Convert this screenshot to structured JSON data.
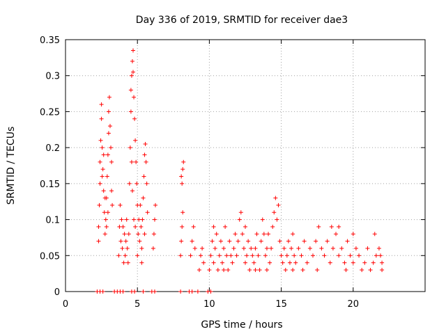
{
  "chart_data": {
    "type": "scatter",
    "title": "Day 336 of 2019, SRMTID for receiver dae3",
    "xlabel": "GPS time / hours",
    "ylabel": "SRMTID / TECUs",
    "xlim": [
      0,
      25
    ],
    "ylim": [
      0,
      0.35
    ],
    "xticks": [
      0,
      5,
      10,
      15,
      20
    ],
    "xtick_labels": [
      "0",
      "5",
      "10",
      "15",
      "20"
    ],
    "yticks": [
      0,
      0.05,
      0.1,
      0.15,
      0.2,
      0.25,
      0.3,
      0.35
    ],
    "ytick_labels": [
      "0",
      "0.05",
      "0.1",
      "0.15",
      "0.2",
      "0.25",
      "0.3",
      "0.35"
    ],
    "grid": true,
    "marker": "+",
    "series": [
      {
        "name": "SRMTID",
        "color": "#ff0000",
        "points": [
          [
            2.2,
            0
          ],
          [
            2.4,
            0
          ],
          [
            2.6,
            0
          ],
          [
            3.4,
            0
          ],
          [
            3.6,
            0
          ],
          [
            3.8,
            0
          ],
          [
            4.0,
            0
          ],
          [
            4.6,
            0
          ],
          [
            4.8,
            0
          ],
          [
            5.4,
            0
          ],
          [
            6.0,
            0
          ],
          [
            6.2,
            0
          ],
          [
            8.0,
            0
          ],
          [
            8.6,
            0
          ],
          [
            8.8,
            0
          ],
          [
            9.2,
            0
          ],
          [
            9.9,
            0
          ],
          [
            10.1,
            0
          ],
          [
            2.3,
            0.07
          ],
          [
            2.3,
            0.09
          ],
          [
            2.35,
            0.12
          ],
          [
            2.4,
            0.15
          ],
          [
            2.4,
            0.18
          ],
          [
            2.45,
            0.21
          ],
          [
            2.5,
            0.24
          ],
          [
            2.5,
            0.26
          ],
          [
            2.55,
            0.2
          ],
          [
            2.6,
            0.17
          ],
          [
            2.65,
            0.14
          ],
          [
            2.7,
            0.11
          ],
          [
            2.75,
            0.08
          ],
          [
            2.8,
            0.1
          ],
          [
            2.85,
            0.13
          ],
          [
            2.9,
            0.16
          ],
          [
            2.95,
            0.19
          ],
          [
            3.0,
            0.22
          ],
          [
            3.0,
            0.25
          ],
          [
            3.05,
            0.27
          ],
          [
            3.1,
            0.23
          ],
          [
            3.15,
            0.2
          ],
          [
            3.2,
            0.18
          ],
          [
            3.2,
            0.14
          ],
          [
            3.25,
            0.12
          ],
          [
            2.55,
            0.16
          ],
          [
            2.65,
            0.19
          ],
          [
            2.75,
            0.13
          ],
          [
            2.85,
            0.09
          ],
          [
            2.95,
            0.11
          ],
          [
            3.7,
            0.05
          ],
          [
            3.75,
            0.09
          ],
          [
            3.8,
            0.12
          ],
          [
            3.85,
            0.07
          ],
          [
            3.9,
            0.1
          ],
          [
            3.95,
            0.06
          ],
          [
            4.0,
            0.09
          ],
          [
            4.05,
            0.04
          ],
          [
            4.1,
            0.08
          ],
          [
            4.15,
            0.05
          ],
          [
            4.2,
            0.07
          ],
          [
            4.25,
            0.1
          ],
          [
            4.3,
            0.06
          ],
          [
            4.35,
            0.04
          ],
          [
            4.4,
            0.08
          ],
          [
            4.45,
            0.15
          ],
          [
            4.5,
            0.2
          ],
          [
            4.55,
            0.25
          ],
          [
            4.55,
            0.28
          ],
          [
            4.6,
            0.3
          ],
          [
            4.65,
            0.32
          ],
          [
            4.7,
            0.335
          ],
          [
            4.7,
            0.305
          ],
          [
            4.75,
            0.27
          ],
          [
            4.8,
            0.24
          ],
          [
            4.85,
            0.21
          ],
          [
            4.9,
            0.18
          ],
          [
            4.95,
            0.15
          ],
          [
            5.0,
            0.12
          ],
          [
            4.6,
            0.18
          ],
          [
            4.65,
            0.14
          ],
          [
            4.75,
            0.1
          ],
          [
            4.85,
            0.09
          ],
          [
            5.0,
            0.05
          ],
          [
            5.05,
            0.08
          ],
          [
            5.1,
            0.1
          ],
          [
            5.15,
            0.07
          ],
          [
            5.2,
            0.12
          ],
          [
            5.25,
            0.09
          ],
          [
            5.3,
            0.06
          ],
          [
            5.35,
            0.1
          ],
          [
            5.4,
            0.13
          ],
          [
            5.45,
            0.16
          ],
          [
            5.5,
            0.19
          ],
          [
            5.55,
            0.205
          ],
          [
            5.6,
            0.18
          ],
          [
            5.65,
            0.15
          ],
          [
            5.7,
            0.11
          ],
          [
            5.5,
            0.08
          ],
          [
            5.3,
            0.04
          ],
          [
            6.1,
            0.06
          ],
          [
            6.15,
            0.08
          ],
          [
            6.2,
            0.1
          ],
          [
            6.25,
            0.12
          ],
          [
            8.0,
            0.05
          ],
          [
            8.05,
            0.07
          ],
          [
            8.1,
            0.09
          ],
          [
            8.15,
            0.11
          ],
          [
            8.1,
            0.15
          ],
          [
            8.15,
            0.17
          ],
          [
            8.2,
            0.18
          ],
          [
            8.05,
            0.16
          ],
          [
            8.7,
            0.05
          ],
          [
            8.8,
            0.07
          ],
          [
            8.9,
            0.09
          ],
          [
            9.0,
            0.06
          ],
          [
            9.3,
            0.03
          ],
          [
            9.4,
            0.05
          ],
          [
            9.5,
            0.06
          ],
          [
            9.6,
            0.04
          ],
          [
            10.0,
            0.03
          ],
          [
            10.1,
            0.05
          ],
          [
            10.2,
            0.07
          ],
          [
            10.3,
            0.04
          ],
          [
            10.4,
            0.06
          ],
          [
            10.5,
            0.08
          ],
          [
            10.6,
            0.03
          ],
          [
            10.7,
            0.05
          ],
          [
            10.8,
            0.07
          ],
          [
            10.9,
            0.04
          ],
          [
            11.0,
            0.06
          ],
          [
            11.1,
            0.09
          ],
          [
            11.2,
            0.05
          ],
          [
            11.3,
            0.03
          ],
          [
            11.4,
            0.07
          ],
          [
            11.5,
            0.05
          ],
          [
            11.6,
            0.04
          ],
          [
            11.7,
            0.06
          ],
          [
            11.8,
            0.08
          ],
          [
            11.9,
            0.05
          ],
          [
            12.0,
            0.07
          ],
          [
            12.1,
            0.1
          ],
          [
            12.2,
            0.11
          ],
          [
            12.3,
            0.08
          ],
          [
            12.4,
            0.06
          ],
          [
            12.5,
            0.04
          ],
          [
            12.6,
            0.05
          ],
          [
            12.7,
            0.07
          ],
          [
            12.8,
            0.03
          ],
          [
            12.9,
            0.06
          ],
          [
            13.0,
            0.05
          ],
          [
            13.1,
            0.04
          ],
          [
            13.2,
            0.06
          ],
          [
            13.3,
            0.08
          ],
          [
            13.4,
            0.05
          ],
          [
            13.5,
            0.03
          ],
          [
            13.6,
            0.07
          ],
          [
            13.7,
            0.1
          ],
          [
            13.8,
            0.08
          ],
          [
            13.9,
            0.05
          ],
          [
            14.0,
            0.06
          ],
          [
            14.1,
            0.08
          ],
          [
            14.2,
            0.04
          ],
          [
            14.3,
            0.06
          ],
          [
            14.4,
            0.09
          ],
          [
            14.5,
            0.11
          ],
          [
            14.6,
            0.13
          ],
          [
            14.7,
            0.1
          ],
          [
            14.8,
            0.12
          ],
          [
            14.9,
            0.07
          ],
          [
            15.0,
            0.05
          ],
          [
            15.1,
            0.04
          ],
          [
            15.2,
            0.06
          ],
          [
            15.3,
            0.03
          ],
          [
            15.4,
            0.05
          ],
          [
            15.5,
            0.07
          ],
          [
            15.6,
            0.04
          ],
          [
            15.7,
            0.06
          ],
          [
            15.8,
            0.08
          ],
          [
            15.9,
            0.05
          ],
          [
            16.0,
            0.04
          ],
          [
            16.2,
            0.06
          ],
          [
            16.4,
            0.05
          ],
          [
            16.6,
            0.07
          ],
          [
            16.8,
            0.04
          ],
          [
            17.0,
            0.06
          ],
          [
            17.2,
            0.05
          ],
          [
            17.4,
            0.07
          ],
          [
            17.6,
            0.09
          ],
          [
            17.8,
            0.06
          ],
          [
            18.0,
            0.05
          ],
          [
            18.2,
            0.07
          ],
          [
            18.4,
            0.04
          ],
          [
            18.6,
            0.06
          ],
          [
            18.8,
            0.08
          ],
          [
            19.0,
            0.05
          ],
          [
            19.2,
            0.06
          ],
          [
            19.4,
            0.04
          ],
          [
            19.6,
            0.07
          ],
          [
            19.8,
            0.05
          ],
          [
            20.0,
            0.04
          ],
          [
            20.2,
            0.06
          ],
          [
            20.4,
            0.05
          ],
          [
            20.6,
            0.03
          ],
          [
            20.8,
            0.04
          ],
          [
            21.0,
            0.06
          ],
          [
            21.2,
            0.03
          ],
          [
            21.4,
            0.04
          ],
          [
            21.6,
            0.05
          ],
          [
            21.8,
            0.06
          ],
          [
            21.9,
            0.05
          ],
          [
            22.0,
            0.04
          ],
          [
            10.3,
            0.09
          ],
          [
            11.0,
            0.03
          ],
          [
            12.5,
            0.09
          ],
          [
            13.2,
            0.03
          ],
          [
            14.0,
            0.03
          ],
          [
            15.8,
            0.03
          ],
          [
            16.5,
            0.03
          ],
          [
            17.5,
            0.03
          ],
          [
            18.5,
            0.09
          ],
          [
            19.0,
            0.09
          ],
          [
            20.0,
            0.08
          ],
          [
            21.5,
            0.08
          ],
          [
            22.0,
            0.03
          ],
          [
            19.5,
            0.03
          ]
        ]
      }
    ]
  }
}
